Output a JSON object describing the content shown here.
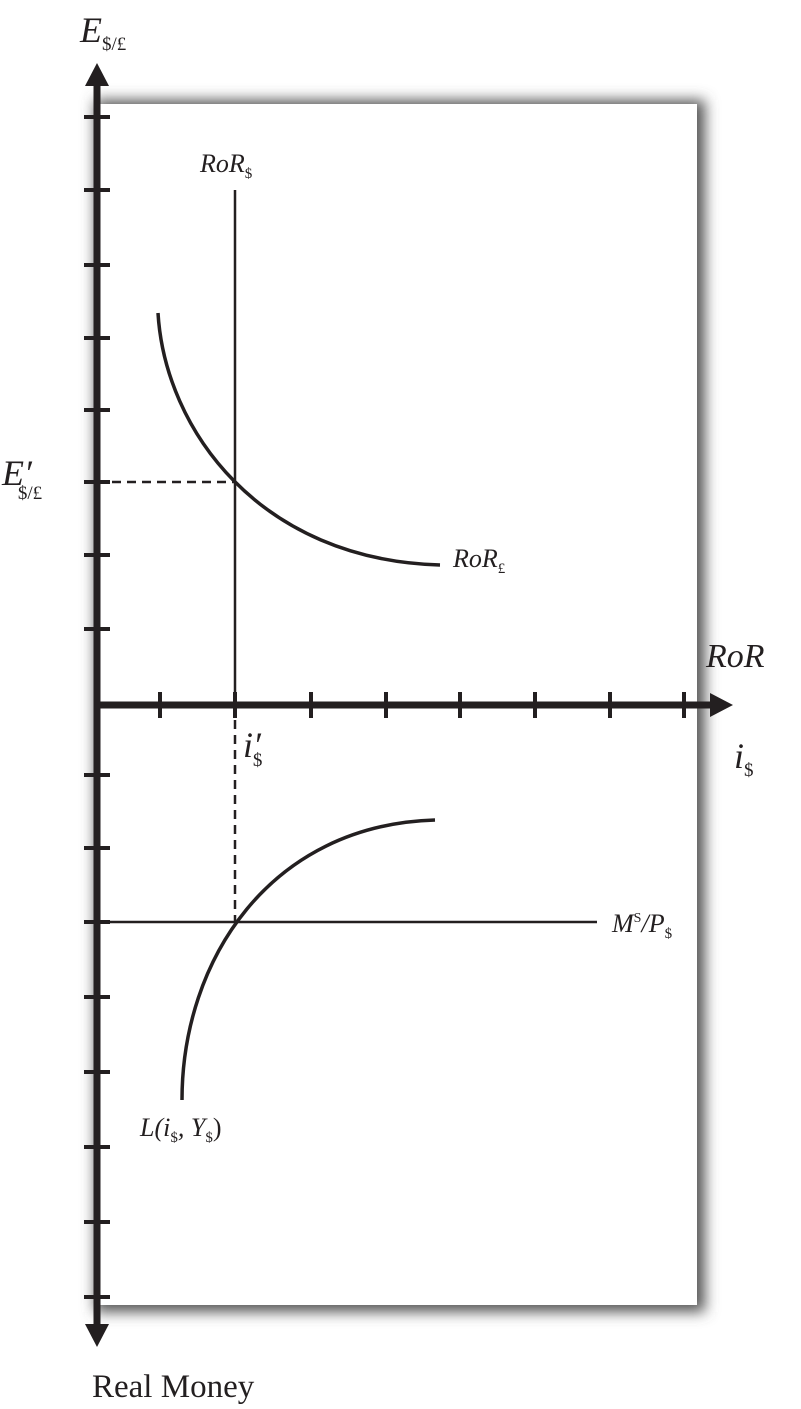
{
  "diagram": {
    "y_axis_top": {
      "main": "E",
      "sub": "$/£"
    },
    "y_axis_bottom": "Real Money",
    "x_axis_upper": "RoR",
    "x_axis_lower": {
      "main": "i",
      "sub": "$"
    },
    "curves": {
      "ror_dollar": {
        "main": "RoR",
        "sub": "$"
      },
      "ror_pound": {
        "main": "RoR",
        "sub": "£"
      },
      "money_supply": {
        "m": "M",
        "sup": "S",
        "p": "/P",
        "sub": "$"
      },
      "money_demand": {
        "open": "L(i",
        "sub1": "$",
        "mid": ", Y",
        "sub2": "$",
        "close": ")"
      }
    },
    "equilibrium": {
      "exchange_rate": {
        "main": "E′",
        "sub": "$/£"
      },
      "interest_rate": {
        "main": "i′",
        "sub": "$"
      }
    },
    "colors": {
      "ink": "#231f20",
      "panel": "#ffffff"
    }
  }
}
